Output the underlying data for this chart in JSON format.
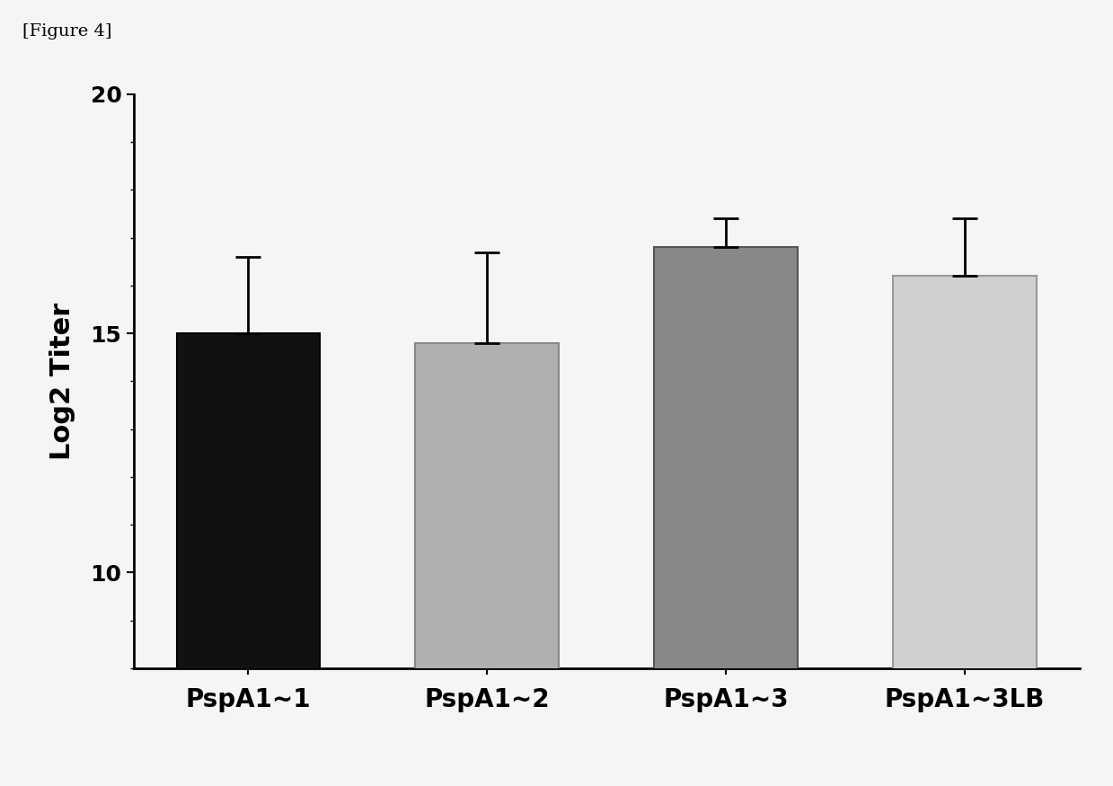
{
  "categories": [
    "PspA1~1",
    "PspA1~2",
    "PspA1~3",
    "PspA1~3LB"
  ],
  "values": [
    15.0,
    14.8,
    16.8,
    16.2
  ],
  "errors_up": [
    1.6,
    1.9,
    0.6,
    1.2
  ],
  "bar_colors": [
    "#111111",
    "#b0b0b0",
    "#888888",
    "#d0d0d0"
  ],
  "bar_edgecolors": [
    "#000000",
    "#888888",
    "#555555",
    "#999999"
  ],
  "ylabel": "Log2 Titer",
  "ylim": [
    8,
    20
  ],
  "yticks": [
    10,
    15,
    20
  ],
  "figure_label": "[Figure 4]",
  "background_color": "#f5f5f5",
  "bar_width": 0.6,
  "capsize": 10,
  "ylabel_fontsize": 22,
  "tick_fontsize": 18,
  "xlabel_fontsize": 20,
  "label_fontsize": 14,
  "error_linewidth": 2.0,
  "error_capthick": 2.0
}
